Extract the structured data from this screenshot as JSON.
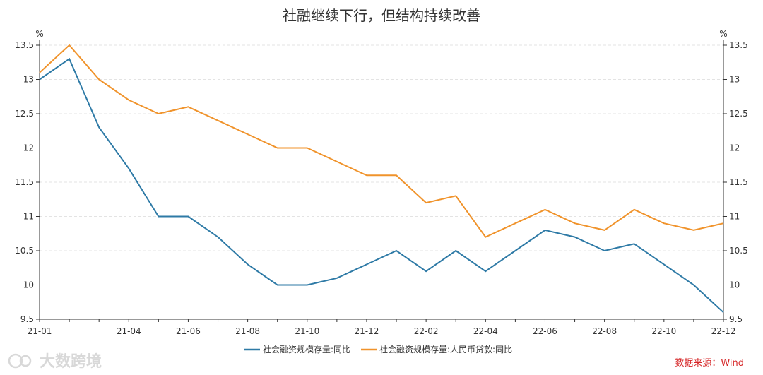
{
  "chart_data": {
    "type": "line",
    "title": "社融继续下行，但结构持续改善",
    "y_unit_left": "%",
    "y_unit_right": "%",
    "ylim": [
      9.5,
      13.5
    ],
    "y_ticks": [
      "9.5",
      "10",
      "10.5",
      "11",
      "11.5",
      "12",
      "12.5",
      "13",
      "13.5"
    ],
    "x": [
      "21-01",
      "21-02",
      "21-03",
      "21-04",
      "21-05",
      "21-06",
      "21-07",
      "21-08",
      "21-09",
      "21-10",
      "21-11",
      "21-12",
      "22-01",
      "22-02",
      "22-03",
      "22-04",
      "22-05",
      "22-06",
      "22-07",
      "22-08",
      "22-09",
      "22-10",
      "22-11",
      "22-12"
    ],
    "x_tick_labels": [
      "21-01",
      "21-04",
      "21-06",
      "21-08",
      "21-10",
      "21-12",
      "22-02",
      "22-04",
      "22-06",
      "22-08",
      "22-10",
      "22-12"
    ],
    "series": [
      {
        "name": "社会融资规模存量:同比",
        "color": "#2e7aa6",
        "values": [
          13.0,
          13.3,
          12.3,
          11.7,
          11.0,
          11.0,
          10.7,
          10.3,
          10.0,
          10.0,
          10.1,
          10.3,
          10.5,
          10.2,
          10.5,
          10.2,
          10.5,
          10.8,
          10.7,
          10.5,
          10.6,
          10.3,
          10.0,
          9.6
        ]
      },
      {
        "name": "社会融资规模存量:人民币贷款:同比",
        "color": "#f0932b",
        "values": [
          13.1,
          13.5,
          13.0,
          12.7,
          12.5,
          12.6,
          12.4,
          12.2,
          12.0,
          12.0,
          11.8,
          11.6,
          11.6,
          11.2,
          11.3,
          10.7,
          10.9,
          11.1,
          10.9,
          10.8,
          11.1,
          10.9,
          10.8,
          10.9
        ]
      }
    ],
    "grid": true,
    "legend": "bottom-center",
    "source": "数据来源：Wind",
    "watermark": "大数跨境"
  }
}
